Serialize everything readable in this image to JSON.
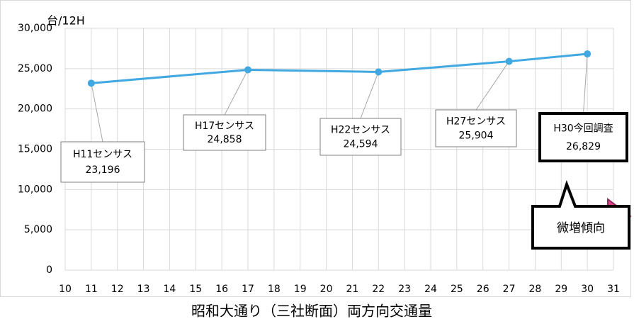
{
  "chart_data": {
    "type": "line",
    "title": "昭和大通り（三社断面）両方向交通量",
    "ylabel": "台/12H",
    "x": [
      11,
      17,
      22,
      27,
      30
    ],
    "series": [
      {
        "name": "両方向交通量",
        "color": "#41a8e1",
        "values": [
          23196,
          24858,
          24594,
          25904,
          26829
        ]
      }
    ],
    "point_labels": [
      "H11センサス",
      "H17センサス",
      "H22センサス",
      "H27センサス",
      "H30今回調査"
    ],
    "value_labels": [
      "23,196",
      "24,858",
      "24,594",
      "25,904",
      "26,829"
    ],
    "annotation": "微増傾向",
    "xlim": [
      10,
      31
    ],
    "xticks": [
      10,
      11,
      12,
      13,
      14,
      15,
      16,
      17,
      18,
      19,
      20,
      21,
      22,
      23,
      24,
      25,
      26,
      27,
      28,
      29,
      30,
      31
    ],
    "ylim": [
      0,
      30000
    ],
    "yticks": [
      0,
      {
        "value": 5000,
        "label": "5,000"
      },
      {
        "value": 10000,
        "label": "10,000"
      },
      {
        "value": 15000,
        "label": "15,000"
      },
      {
        "value": 20000,
        "label": "20,000"
      },
      {
        "value": 25000,
        "label": "25,000"
      },
      {
        "value": 30000,
        "label": "30,000"
      }
    ],
    "grid": true
  }
}
